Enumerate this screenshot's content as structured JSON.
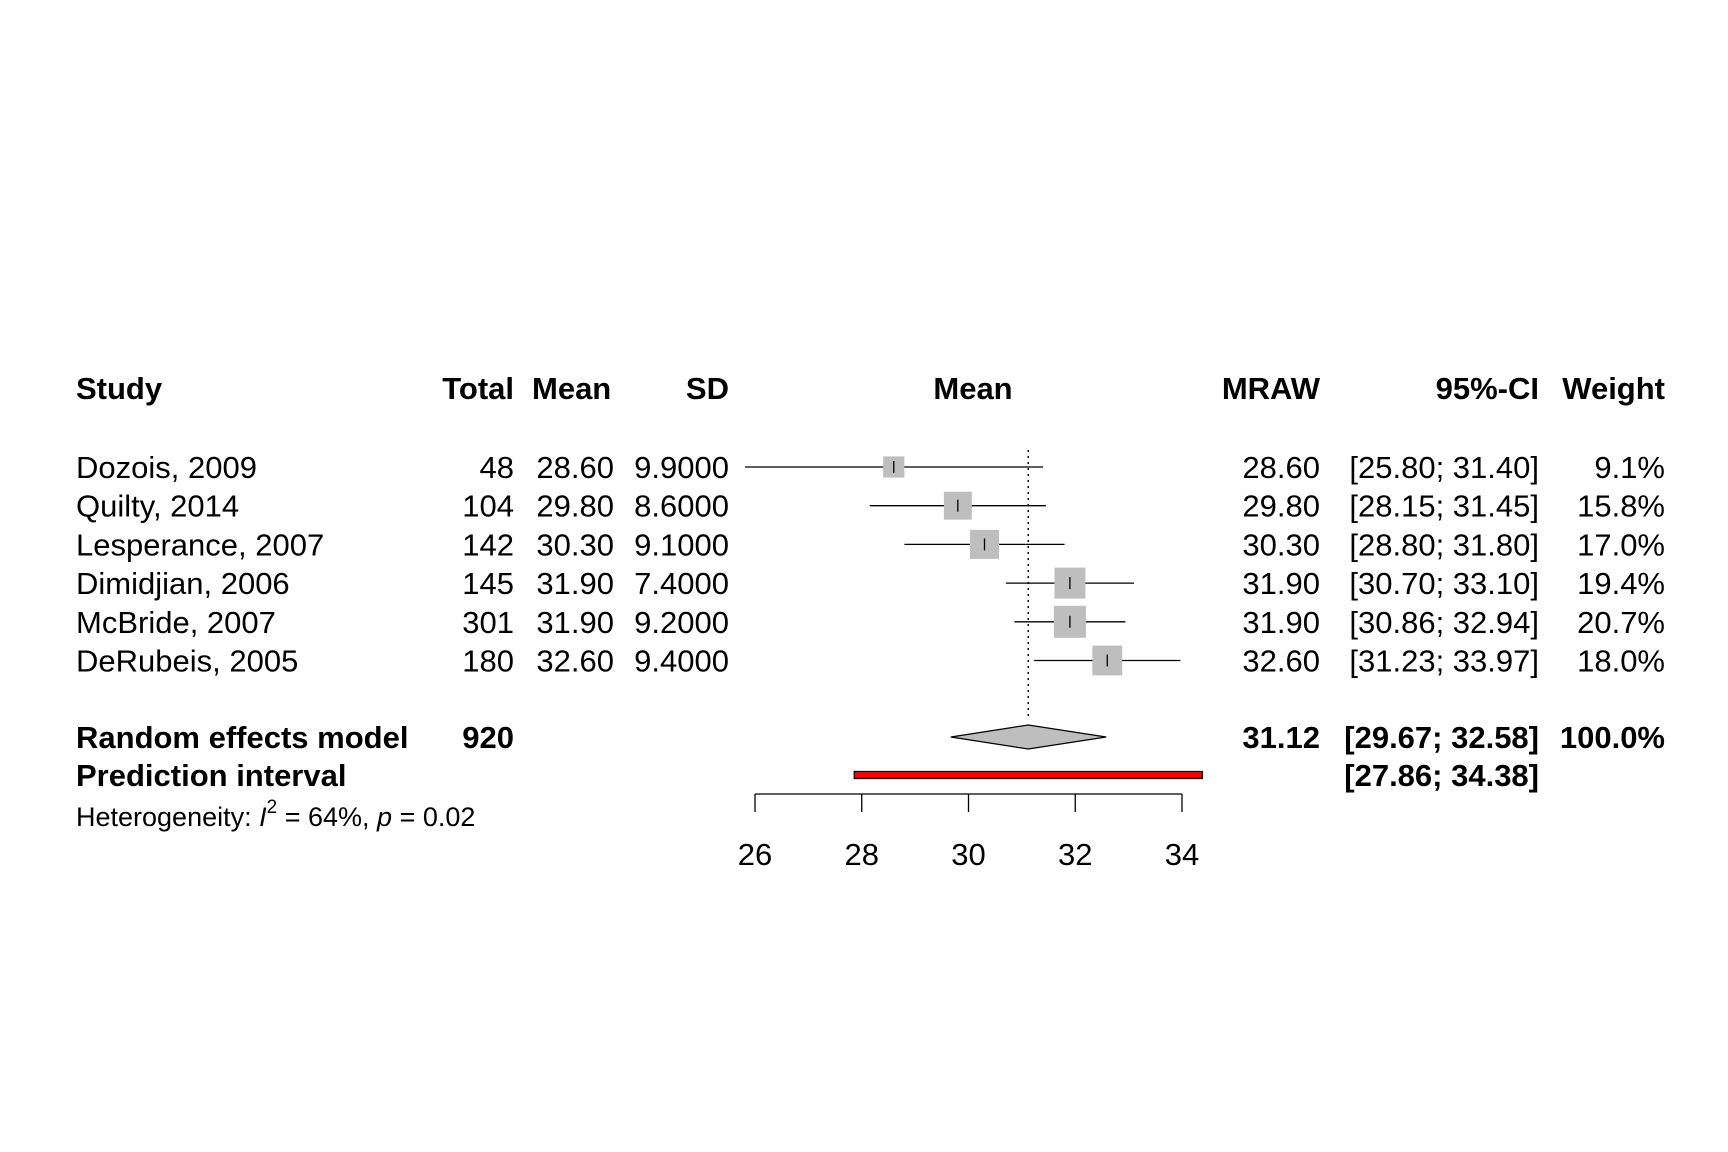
{
  "columns": {
    "study": "Study",
    "total": "Total",
    "mean": "Mean",
    "sd": "SD",
    "plot": "Mean",
    "mraw": "MRAW",
    "ci": "95%-CI",
    "weight": "Weight"
  },
  "studies": [
    {
      "study": "Dozois, 2009",
      "total": "48",
      "mean": "28.60",
      "sd": "9.9000",
      "mraw": "28.60",
      "ci": "[25.80; 31.40]",
      "weight": "9.1%"
    },
    {
      "study": "Quilty, 2014",
      "total": "104",
      "mean": "29.80",
      "sd": "8.6000",
      "mraw": "29.80",
      "ci": "[28.15; 31.45]",
      "weight": "15.8%"
    },
    {
      "study": "Lesperance, 2007",
      "total": "142",
      "mean": "30.30",
      "sd": "9.1000",
      "mraw": "30.30",
      "ci": "[28.80; 31.80]",
      "weight": "17.0%"
    },
    {
      "study": "Dimidjian, 2006",
      "total": "145",
      "mean": "31.90",
      "sd": "7.4000",
      "mraw": "31.90",
      "ci": "[30.70; 33.10]",
      "weight": "19.4%"
    },
    {
      "study": "McBride, 2007",
      "total": "301",
      "mean": "31.90",
      "sd": "9.2000",
      "mraw": "31.90",
      "ci": "[30.86; 32.94]",
      "weight": "20.7%"
    },
    {
      "study": "DeRubeis, 2005",
      "total": "180",
      "mean": "32.60",
      "sd": "9.4000",
      "mraw": "32.60",
      "ci": "[31.23; 33.97]",
      "weight": "18.0%"
    }
  ],
  "random_effects": {
    "label": "Random effects model",
    "total": "920",
    "mraw": "31.12",
    "ci": "[29.67; 32.58]",
    "weight": "100.0%"
  },
  "prediction": {
    "label": "Prediction interval",
    "ci": "[27.86; 34.38]"
  },
  "heterogeneity": {
    "prefix": "Heterogeneity: ",
    "i_symbol": "I",
    "superscript": "2",
    "i2_text": " = 64%, ",
    "p_symbol": "p",
    "p_text": " = 0.02"
  },
  "colors": {
    "square": "#bebebe",
    "diamond": "#bebebe",
    "prediction": "#ff0000"
  },
  "chart_data": {
    "type": "forest",
    "x_ticks": [
      26,
      28,
      30,
      32,
      34
    ],
    "x_tick_labels": [
      "26",
      "28",
      "30",
      "32",
      "34"
    ],
    "xlim": [
      26,
      34
    ],
    "reference_line": 31.12,
    "studies": [
      {
        "mean": 28.6,
        "lower": 25.8,
        "upper": 31.4,
        "weight": 9.1
      },
      {
        "mean": 29.8,
        "lower": 28.15,
        "upper": 31.45,
        "weight": 15.8
      },
      {
        "mean": 30.3,
        "lower": 28.8,
        "upper": 31.8,
        "weight": 17.0
      },
      {
        "mean": 31.9,
        "lower": 30.7,
        "upper": 33.1,
        "weight": 19.4
      },
      {
        "mean": 31.9,
        "lower": 30.86,
        "upper": 32.94,
        "weight": 20.7
      },
      {
        "mean": 32.6,
        "lower": 31.23,
        "upper": 33.97,
        "weight": 18.0
      }
    ],
    "pooled": {
      "mean": 31.12,
      "lower": 29.67,
      "upper": 32.58
    },
    "prediction_interval": {
      "lower": 27.86,
      "upper": 34.38
    }
  }
}
